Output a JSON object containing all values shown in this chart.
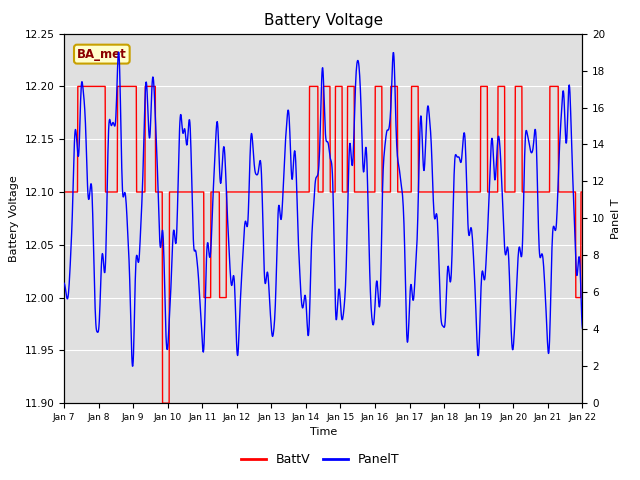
{
  "title": "Battery Voltage",
  "xlabel": "Time",
  "ylabel_left": "Battery Voltage",
  "ylabel_right": "Panel T",
  "annotation_text": "BA_met",
  "ylim_left": [
    11.9,
    12.25
  ],
  "ylim_right": [
    0,
    20
  ],
  "yticks_left": [
    11.9,
    11.95,
    12.0,
    12.05,
    12.1,
    12.15,
    12.2,
    12.25
  ],
  "yticks_right": [
    0,
    2,
    4,
    6,
    8,
    10,
    12,
    14,
    16,
    18,
    20
  ],
  "background_color": "#ffffff",
  "plot_bg_color": "#e0e0e0",
  "grid_color": "#ffffff",
  "batt_color": "red",
  "panel_color": "blue",
  "legend_labels": [
    "BattV",
    "PanelT"
  ],
  "x_tick_labels": [
    "Jan 7",
    "Jan 8",
    "Jan 9",
    "Jan 10",
    "Jan 11",
    "Jan 12",
    "Jan 13",
    "Jan 14",
    "Jan 15",
    "Jan 16",
    "Jan 17",
    "Jan 18",
    "Jan 19",
    "Jan 20",
    "Jan 21",
    "Jan 22"
  ]
}
